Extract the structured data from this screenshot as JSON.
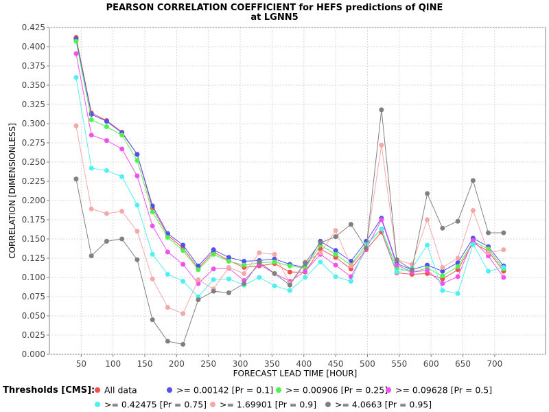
{
  "chart_data": {
    "type": "line",
    "title": "PEARSON CORRELATION COEFFICIENT for HEFS predictions of QINE",
    "subtitle": "at LGNN5",
    "xlabel": "FORECAST LEAD TIME [HOUR]",
    "ylabel": "CORRELATION [DIMENSIONLESS]",
    "xlim": [
      0,
      780
    ],
    "ylim": [
      0.0,
      0.425
    ],
    "xticks": [
      50,
      100,
      150,
      200,
      250,
      300,
      350,
      400,
      450,
      500,
      550,
      600,
      650,
      700
    ],
    "yticks": [
      0.0,
      0.025,
      0.05,
      0.075,
      0.1,
      0.125,
      0.15,
      0.175,
      0.2,
      0.225,
      0.25,
      0.275,
      0.3,
      0.325,
      0.35,
      0.375,
      0.4,
      0.425
    ],
    "ytick_labels": [
      "0.000",
      "0.025",
      "0.050",
      "0.075",
      "0.100",
      "0.125",
      "0.150",
      "0.175",
      "0.200",
      "0.225",
      "0.250",
      "0.275",
      "0.300",
      "0.325",
      "0.350",
      "0.375",
      "0.400",
      "0.425"
    ],
    "grid": true,
    "legend_title": "Thresholds [CMS]:",
    "legend_position": "bottom",
    "x": [
      42,
      66,
      90,
      114,
      138,
      162,
      186,
      210,
      234,
      258,
      282,
      306,
      330,
      354,
      378,
      402,
      426,
      450,
      474,
      498,
      522,
      546,
      570,
      594,
      618,
      642,
      666,
      690,
      714
    ],
    "series": [
      {
        "name": "All data",
        "color": "#f05050",
        "values": [
          0.412,
          0.314,
          0.304,
          0.289,
          0.26,
          0.19,
          0.155,
          0.138,
          0.112,
          0.133,
          0.122,
          0.113,
          0.115,
          0.118,
          0.107,
          0.107,
          0.137,
          0.126,
          0.111,
          0.136,
          0.159,
          0.106,
          0.104,
          0.105,
          0.098,
          0.11,
          0.145,
          0.134,
          0.108
        ]
      },
      {
        "name": ">= 0.00142 [Pr = 0.1]",
        "color": "#5050f0",
        "values": [
          0.41,
          0.312,
          0.303,
          0.288,
          0.26,
          0.193,
          0.157,
          0.142,
          0.115,
          0.136,
          0.126,
          0.121,
          0.122,
          0.124,
          0.117,
          0.113,
          0.147,
          0.135,
          0.121,
          0.147,
          0.177,
          0.118,
          0.11,
          0.116,
          0.108,
          0.119,
          0.151,
          0.14,
          0.115
        ]
      },
      {
        "name": ">= 0.00906 [Pr = 0.25]",
        "color": "#50f050",
        "values": [
          0.407,
          0.305,
          0.296,
          0.285,
          0.252,
          0.185,
          0.152,
          0.135,
          0.11,
          0.13,
          0.121,
          0.116,
          0.119,
          0.12,
          0.115,
          0.112,
          0.142,
          0.13,
          0.116,
          0.143,
          0.163,
          0.112,
          0.107,
          0.112,
          0.102,
          0.114,
          0.147,
          0.137,
          0.111
        ]
      },
      {
        "name": ">= 0.09628 [Pr = 0.5]",
        "color": "#f050f0",
        "values": [
          0.391,
          0.285,
          0.278,
          0.267,
          0.232,
          0.167,
          0.133,
          0.117,
          0.092,
          0.111,
          0.112,
          0.096,
          0.117,
          0.105,
          0.095,
          0.108,
          0.13,
          0.116,
          0.101,
          0.137,
          0.175,
          0.116,
          0.107,
          0.109,
          0.092,
          0.101,
          0.148,
          0.128,
          0.1
        ]
      },
      {
        "name": ">= 0.42475 [Pr = 0.75]",
        "color": "#50f0f0",
        "values": [
          0.36,
          0.242,
          0.239,
          0.231,
          0.194,
          0.13,
          0.104,
          0.095,
          0.075,
          0.097,
          0.098,
          0.09,
          0.1,
          0.089,
          0.083,
          0.1,
          0.12,
          0.101,
          0.095,
          0.142,
          0.163,
          0.107,
          0.112,
          0.142,
          0.083,
          0.079,
          0.143,
          0.108,
          0.113
        ]
      },
      {
        "name": ">= 1.69901 [Pr = 0.9]",
        "color": "#f5a8a8",
        "values": [
          0.297,
          0.189,
          0.183,
          0.186,
          0.16,
          0.098,
          0.061,
          0.053,
          0.097,
          0.085,
          0.113,
          0.105,
          0.132,
          0.13,
          0.092,
          0.12,
          0.132,
          0.161,
          0.115,
          0.139,
          0.272,
          0.123,
          0.117,
          0.175,
          0.113,
          0.125,
          0.187,
          0.132,
          0.136
        ]
      },
      {
        "name": ">= 4.0663 [Pr = 0.95]",
        "color": "#808080",
        "values": [
          0.228,
          0.128,
          0.147,
          0.15,
          0.123,
          0.045,
          0.017,
          0.013,
          0.071,
          0.082,
          0.08,
          0.092,
          0.12,
          0.105,
          0.09,
          0.119,
          0.145,
          0.153,
          0.169,
          0.138,
          0.318,
          0.123,
          0.11,
          0.209,
          0.164,
          0.173,
          0.226,
          0.158,
          0.158
        ]
      }
    ]
  }
}
